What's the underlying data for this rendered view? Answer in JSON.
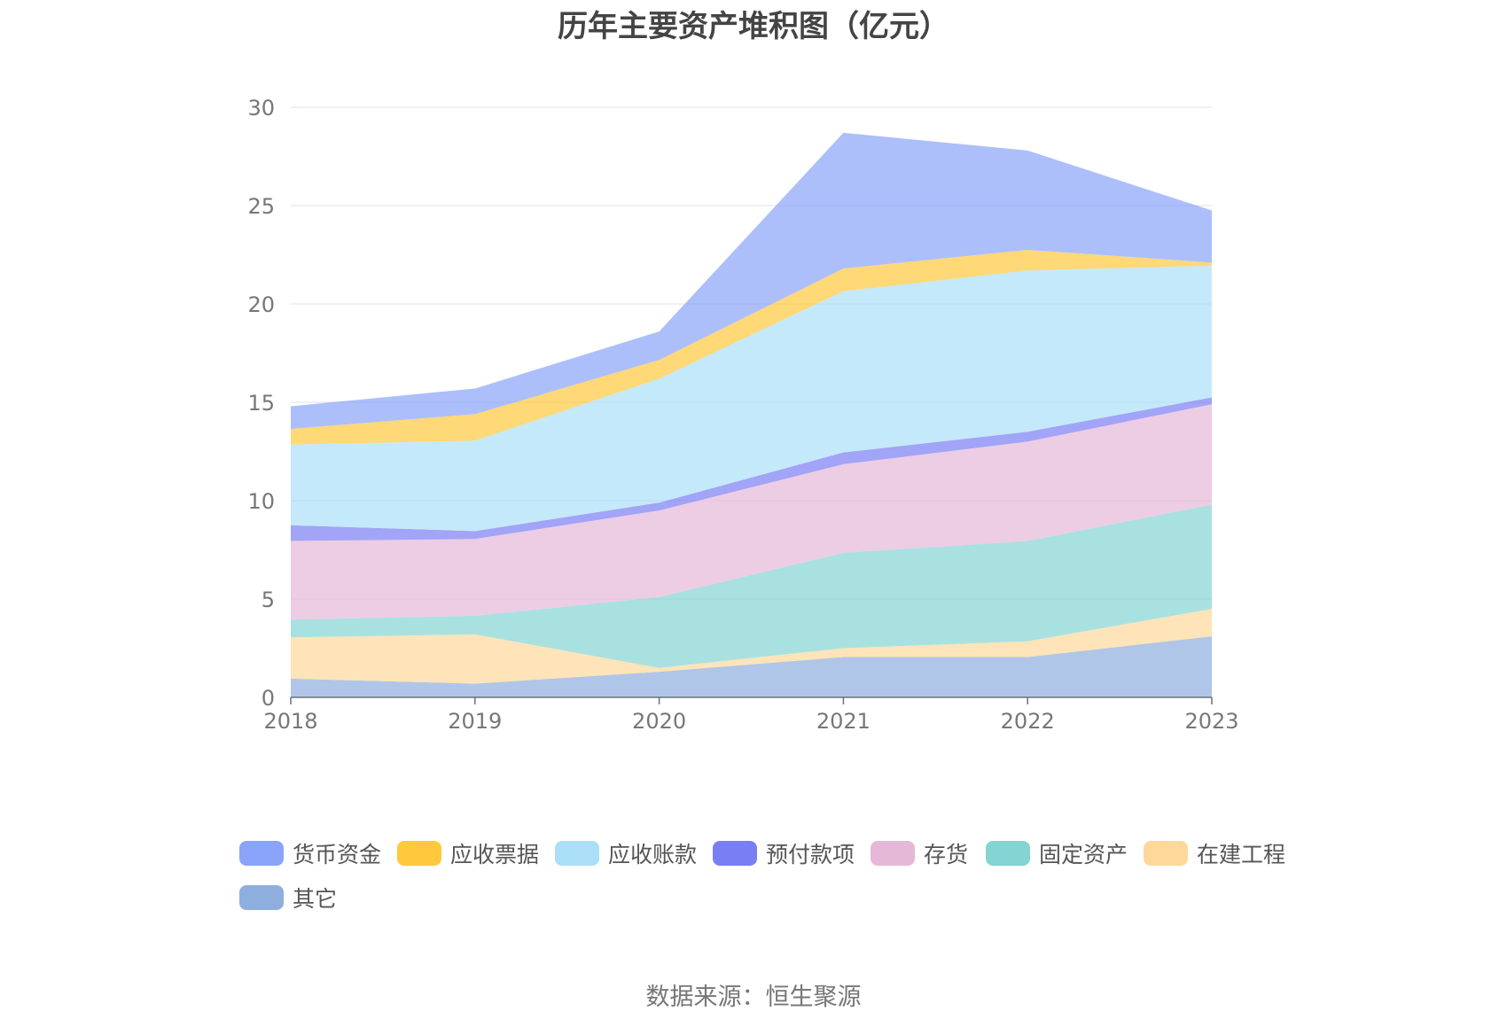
{
  "chart_data": {
    "type": "area",
    "stacked": true,
    "title": "历年主要资产堆积图（亿元）",
    "x": [
      "2018",
      "2019",
      "2020",
      "2021",
      "2022",
      "2023"
    ],
    "ylim": [
      0,
      30
    ],
    "yticks": [
      0,
      5,
      10,
      15,
      20,
      25,
      30
    ],
    "grid": true,
    "legend_position": "bottom",
    "series": [
      {
        "name": "其它",
        "color": "#8eaede",
        "values": [
          0.95,
          0.7,
          1.3,
          2.05,
          2.05,
          3.1
        ]
      },
      {
        "name": "在建工程",
        "color": "#fdd89a",
        "values": [
          2.1,
          2.5,
          0.2,
          0.45,
          0.8,
          1.4
        ]
      },
      {
        "name": "固定资产",
        "color": "#84d4d4",
        "values": [
          0.9,
          0.95,
          3.6,
          4.85,
          5.1,
          5.3
        ]
      },
      {
        "name": "存货",
        "color": "#e6b8d8",
        "values": [
          4.0,
          3.9,
          4.4,
          4.5,
          5.05,
          5.1
        ]
      },
      {
        "name": "预付款项",
        "color": "#7a7ef4",
        "values": [
          0.8,
          0.4,
          0.4,
          0.6,
          0.5,
          0.35
        ]
      },
      {
        "name": "应收账款",
        "color": "#abdff8",
        "values": [
          4.1,
          4.6,
          6.3,
          8.2,
          8.2,
          6.7
        ]
      },
      {
        "name": "应收票据",
        "color": "#ffc83d",
        "values": [
          0.8,
          1.35,
          0.95,
          1.15,
          1.05,
          0.15
        ]
      },
      {
        "name": "货币资金",
        "color": "#89a4fa",
        "values": [
          1.15,
          1.3,
          1.45,
          6.9,
          5.05,
          2.65
        ]
      }
    ]
  },
  "legend_order": [
    "货币资金",
    "应收票据",
    "应收账款",
    "预付款项",
    "存货",
    "固定资产",
    "在建工程",
    "其它"
  ],
  "source_text": "数据来源：恒生聚源"
}
